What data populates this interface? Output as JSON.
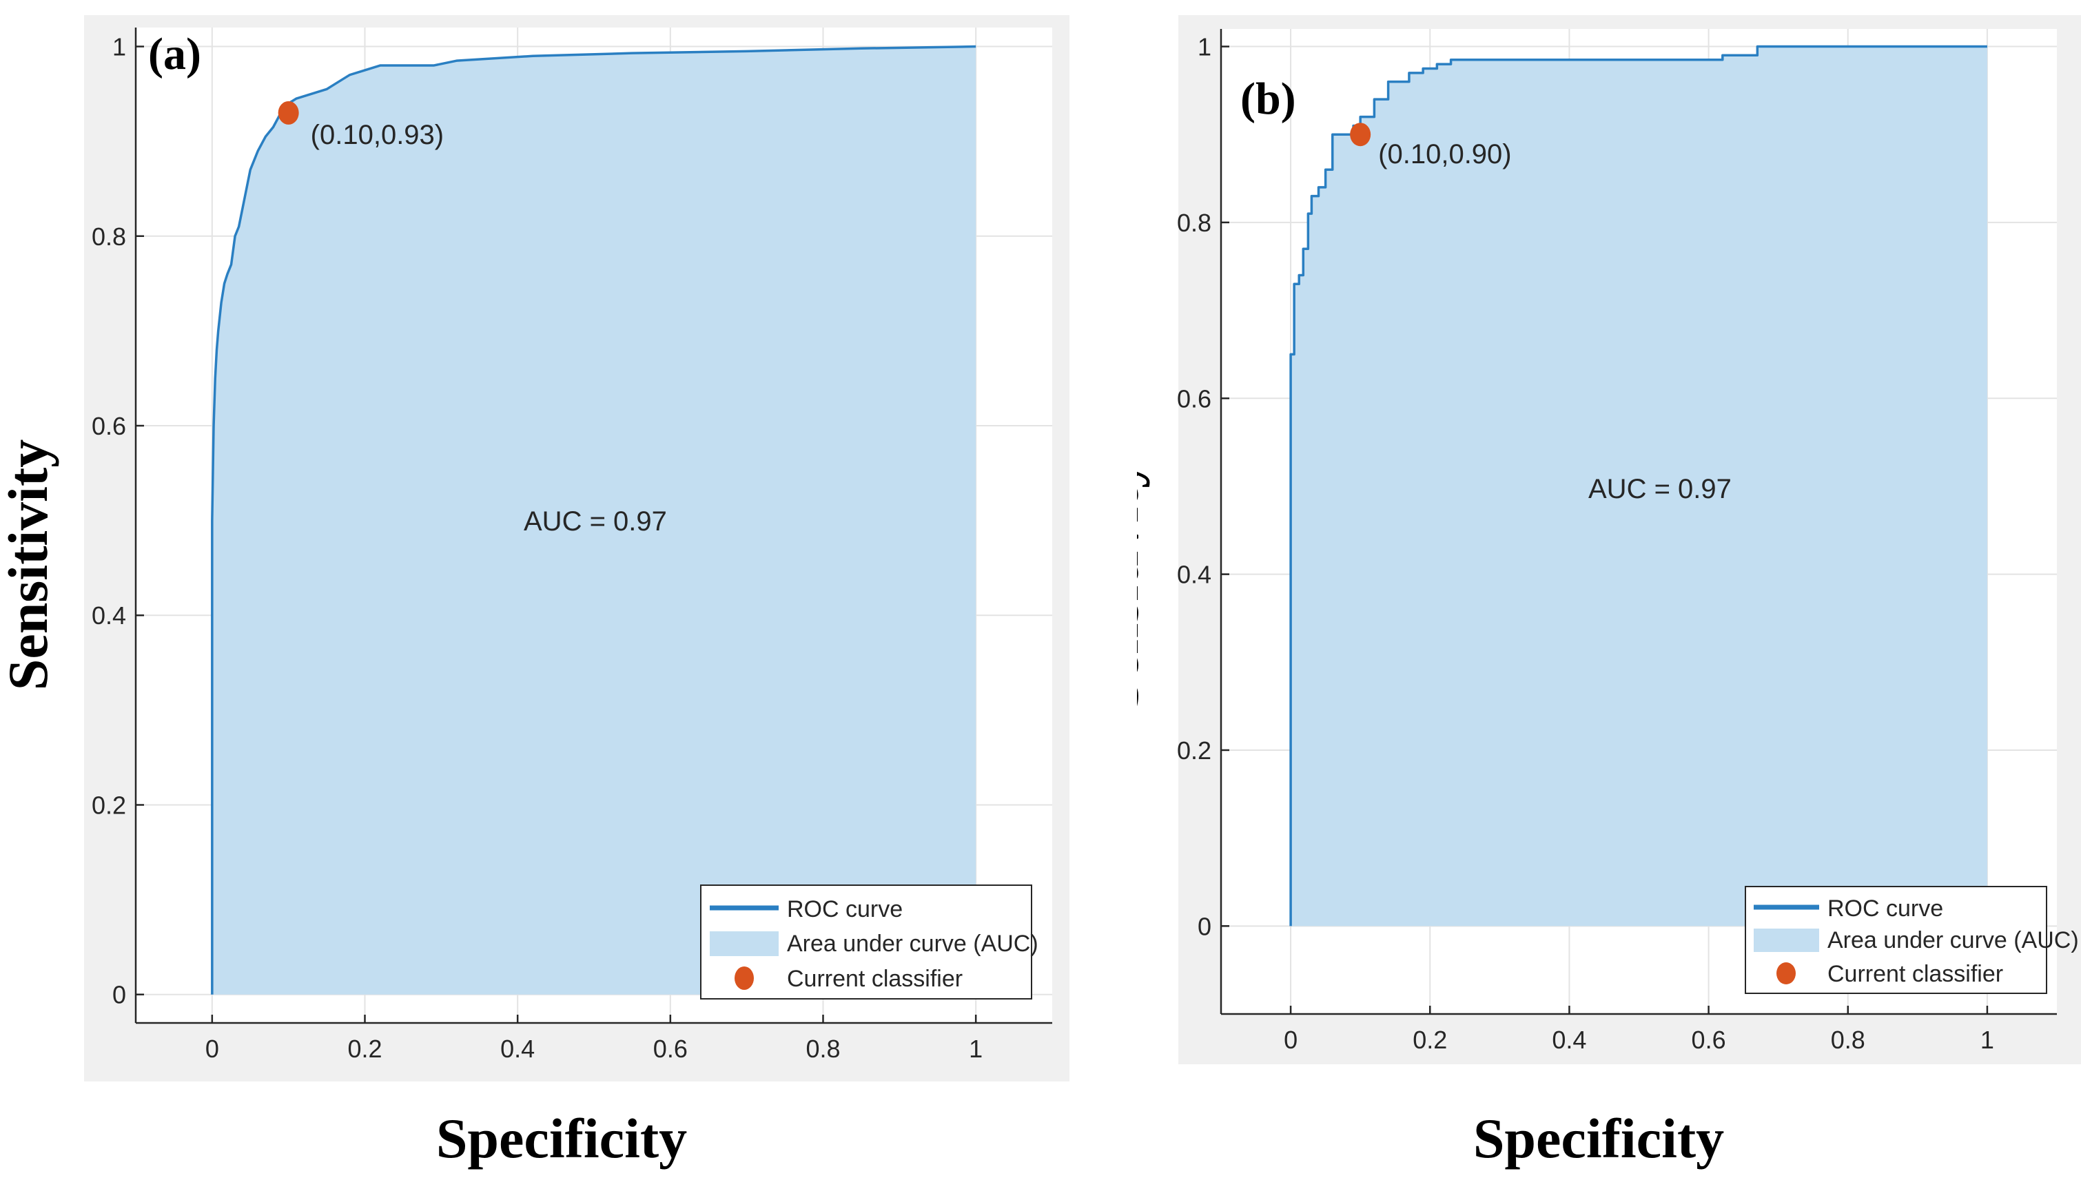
{
  "chart_data": [
    {
      "type": "line",
      "panel_label": "(a)",
      "xlabel": "Specificity",
      "ylabel": "Sensitivity",
      "xlim": [
        -0.1,
        1.1
      ],
      "ylim": [
        -0.03,
        1.02
      ],
      "xticks": [
        0,
        0.2,
        0.4,
        0.6,
        0.8,
        1
      ],
      "xtick_labels": [
        "0",
        "0.2",
        "0.4",
        "0.6",
        "0.8",
        "1"
      ],
      "yticks": [
        0,
        0.2,
        0.4,
        0.6,
        0.8,
        1
      ],
      "ytick_labels": [
        "0",
        "0.2",
        "0.4",
        "0.6",
        "0.8",
        "1"
      ],
      "grid": true,
      "auc_label": "AUC = 0.97",
      "classifier": {
        "x": 0.1,
        "y": 0.93,
        "label": "(0.10,0.93)"
      },
      "legend": {
        "position": "bottom-right",
        "entries": [
          "ROC curve",
          "Area under curve (AUC)",
          "Current classifier"
        ]
      },
      "series": [
        {
          "name": "ROC curve",
          "x": [
            0,
            0.0,
            0.001,
            0.002,
            0.004,
            0.006,
            0.008,
            0.012,
            0.016,
            0.02,
            0.025,
            0.03,
            0.035,
            0.04,
            0.045,
            0.05,
            0.055,
            0.06,
            0.07,
            0.08,
            0.09,
            0.1,
            0.11,
            0.13,
            0.15,
            0.16,
            0.18,
            0.2,
            0.22,
            0.25,
            0.29,
            0.32,
            0.36,
            0.42,
            0.55,
            0.7,
            0.85,
            1.0
          ],
          "y": [
            0,
            0.5,
            0.55,
            0.6,
            0.65,
            0.68,
            0.7,
            0.73,
            0.75,
            0.76,
            0.77,
            0.8,
            0.81,
            0.83,
            0.85,
            0.87,
            0.88,
            0.89,
            0.905,
            0.915,
            0.93,
            0.94,
            0.945,
            0.95,
            0.955,
            0.96,
            0.97,
            0.975,
            0.98,
            0.98,
            0.98,
            0.985,
            0.987,
            0.99,
            0.993,
            0.995,
            0.998,
            1.0
          ]
        }
      ]
    },
    {
      "type": "line",
      "panel_label": "(b)",
      "xlabel": "Specificity",
      "ylabel": "Sensitivity",
      "xlim": [
        -0.1,
        1.1
      ],
      "ylim": [
        -0.1,
        1.02
      ],
      "xticks": [
        0,
        0.2,
        0.4,
        0.6,
        0.8,
        1
      ],
      "xtick_labels": [
        "0",
        "0.2",
        "0.4",
        "0.6",
        "0.8",
        "1"
      ],
      "yticks": [
        0,
        0.2,
        0.4,
        0.6,
        0.8,
        1
      ],
      "ytick_labels": [
        "0",
        "0.2",
        "0.4",
        "0.6",
        "0.8",
        "1"
      ],
      "grid": true,
      "auc_label": "AUC = 0.97",
      "classifier": {
        "x": 0.1,
        "y": 0.9,
        "label": "(0.10,0.90)"
      },
      "legend": {
        "position": "bottom-right",
        "entries": [
          "ROC curve",
          "Area under curve (AUC)",
          "Current classifier"
        ]
      },
      "series": [
        {
          "name": "ROC curve",
          "x": [
            0,
            0,
            0.005,
            0.005,
            0.012,
            0.012,
            0.018,
            0.018,
            0.025,
            0.025,
            0.03,
            0.03,
            0.04,
            0.04,
            0.05,
            0.05,
            0.06,
            0.06,
            0.07,
            0.07,
            0.09,
            0.09,
            0.1,
            0.1,
            0.12,
            0.12,
            0.14,
            0.14,
            0.17,
            0.17,
            0.19,
            0.19,
            0.21,
            0.21,
            0.23,
            0.23,
            0.62,
            0.62,
            0.67,
            0.67,
            1.0
          ],
          "y": [
            0,
            0.65,
            0.65,
            0.73,
            0.73,
            0.74,
            0.74,
            0.77,
            0.77,
            0.81,
            0.81,
            0.83,
            0.83,
            0.84,
            0.84,
            0.86,
            0.86,
            0.9,
            0.9,
            0.9,
            0.9,
            0.91,
            0.91,
            0.92,
            0.92,
            0.94,
            0.94,
            0.96,
            0.96,
            0.97,
            0.97,
            0.975,
            0.975,
            0.98,
            0.98,
            0.985,
            0.985,
            0.99,
            0.99,
            1.0,
            1.0
          ]
        }
      ]
    }
  ]
}
